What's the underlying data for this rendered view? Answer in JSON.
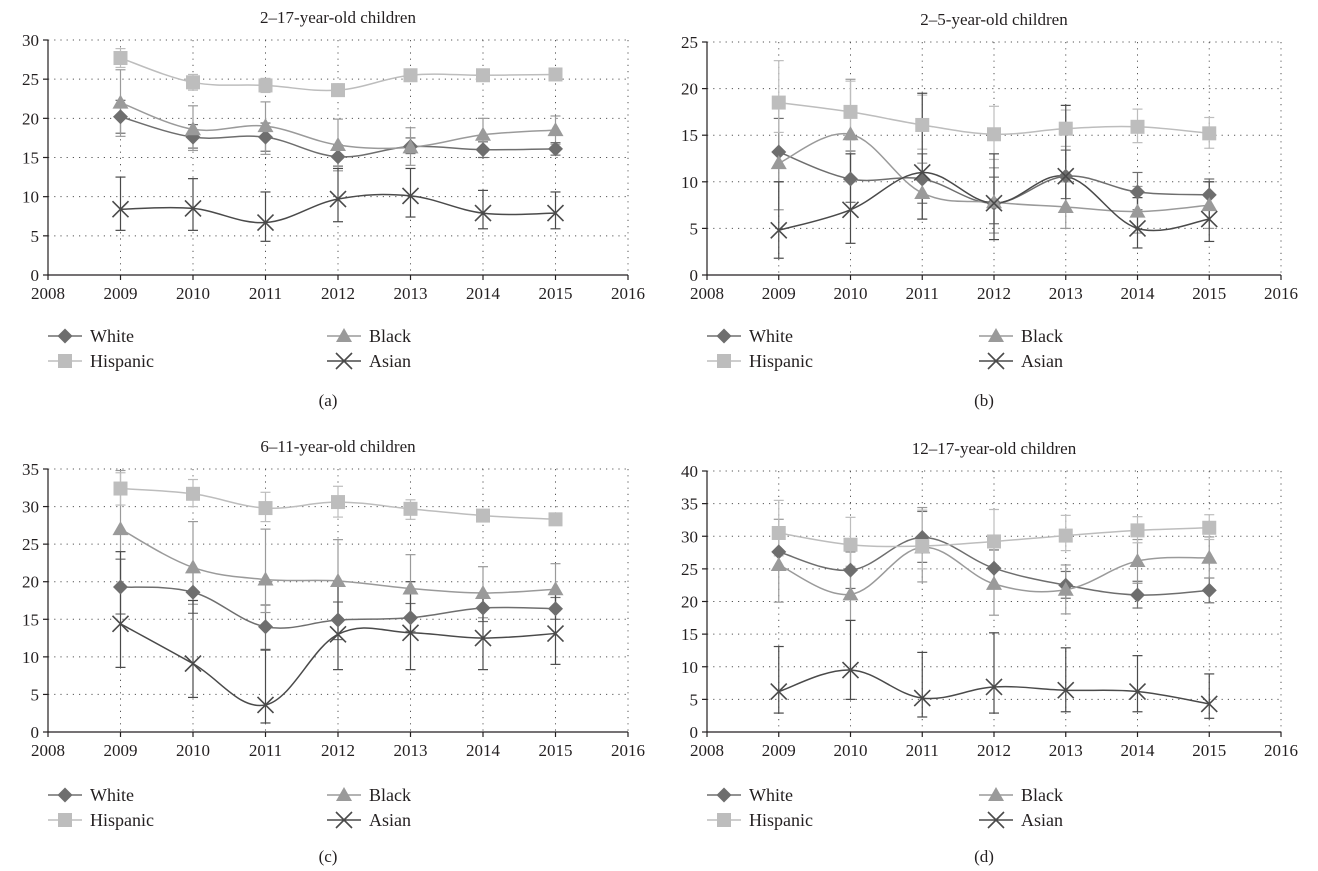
{
  "colors": {
    "White": "#6e6e6e",
    "Black": "#9a9a9a",
    "Hispanic": "#bdbdbd",
    "Asian": "#4a4a4a",
    "axis": "#231f20",
    "grid": "#555555"
  },
  "chart_data": [
    {
      "type": "line",
      "panel_label": "(a)",
      "title": "2–17-year-old children",
      "xlim": [
        2008,
        2016
      ],
      "xticks": [
        2008,
        2009,
        2010,
        2011,
        2012,
        2013,
        2014,
        2015,
        2016
      ],
      "ylim": [
        0,
        30
      ],
      "yticks": [
        0,
        5,
        10,
        15,
        20,
        25,
        30
      ],
      "grid": true,
      "x": [
        2009,
        2010,
        2011,
        2012,
        2013,
        2014,
        2015
      ],
      "series": [
        {
          "name": "White",
          "marker": "diamond",
          "values": [
            20.2,
            17.6,
            17.6,
            15.1,
            16.4,
            16.0,
            16.1
          ],
          "err_low": [
            18.1,
            16.2,
            15.8,
            13.9,
            15.5,
            15.0,
            15.3
          ],
          "err_high": [
            22.3,
            19.2,
            19.4,
            16.6,
            17.5,
            17.0,
            16.9
          ]
        },
        {
          "name": "Black",
          "marker": "triangle",
          "values": [
            22.0,
            18.6,
            19.0,
            16.6,
            16.3,
            17.9,
            18.5
          ],
          "err_low": [
            17.7,
            15.9,
            15.4,
            13.3,
            14.0,
            15.7,
            16.7
          ],
          "err_high": [
            26.2,
            21.6,
            22.1,
            19.9,
            18.8,
            20.0,
            20.3
          ]
        },
        {
          "name": "Hispanic",
          "marker": "square",
          "values": [
            27.7,
            24.6,
            24.2,
            23.6,
            25.5,
            25.5,
            25.6
          ],
          "err_low": [
            26.5,
            23.6,
            23.3,
            22.8,
            24.8,
            24.8,
            25.0
          ],
          "err_high": [
            28.9,
            25.6,
            25.1,
            24.4,
            26.2,
            26.2,
            26.2
          ]
        },
        {
          "name": "Asian",
          "marker": "x",
          "values": [
            8.4,
            8.5,
            6.7,
            9.7,
            10.1,
            7.9,
            7.9
          ],
          "err_low": [
            5.7,
            5.7,
            4.3,
            6.8,
            7.4,
            5.9,
            5.9
          ],
          "err_high": [
            12.5,
            12.3,
            10.6,
            13.6,
            13.6,
            10.8,
            10.6
          ]
        }
      ]
    },
    {
      "type": "line",
      "panel_label": "(b)",
      "title": "2–5-year-old children",
      "xlim": [
        2008,
        2016
      ],
      "xticks": [
        2008,
        2009,
        2010,
        2011,
        2012,
        2013,
        2014,
        2015,
        2016
      ],
      "ylim": [
        0,
        25
      ],
      "yticks": [
        0,
        5,
        10,
        15,
        20,
        25
      ],
      "grid": true,
      "x": [
        2009,
        2010,
        2011,
        2012,
        2013,
        2014,
        2015
      ],
      "series": [
        {
          "name": "White",
          "marker": "diamond",
          "values": [
            13.2,
            10.3,
            10.3,
            7.7,
            10.6,
            8.9,
            8.6
          ],
          "err_low": [
            10.0,
            7.8,
            7.7,
            5.5,
            8.2,
            7.0,
            7.0
          ],
          "err_high": [
            16.8,
            13.3,
            13.0,
            10.5,
            13.4,
            11.0,
            10.3
          ]
        },
        {
          "name": "Black",
          "marker": "triangle",
          "values": [
            12.0,
            15.1,
            8.8,
            7.8,
            7.3,
            6.8,
            7.5
          ],
          "err_low": [
            7.0,
            10.0,
            6.0,
            4.5,
            5.0,
            4.5,
            5.0
          ],
          "err_high": [
            18.0,
            21.0,
            12.0,
            11.5,
            10.0,
            9.5,
            10.0
          ]
        },
        {
          "name": "Hispanic",
          "marker": "square",
          "values": [
            18.5,
            17.5,
            16.1,
            15.1,
            15.7,
            15.9,
            15.2
          ],
          "err_low": [
            15.3,
            14.5,
            13.5,
            12.4,
            13.8,
            14.2,
            13.6
          ],
          "err_high": [
            23.0,
            20.8,
            19.3,
            18.1,
            17.7,
            17.8,
            16.9
          ]
        },
        {
          "name": "Asian",
          "marker": "x",
          "values": [
            4.8,
            7.0,
            11.0,
            7.7,
            10.6,
            5.0,
            6.0
          ],
          "err_low": [
            1.8,
            3.4,
            6.0,
            3.8,
            7.0,
            2.9,
            3.6
          ],
          "err_high": [
            10.0,
            13.0,
            19.5,
            13.0,
            18.2,
            8.3,
            10.0
          ]
        }
      ]
    },
    {
      "type": "line",
      "panel_label": "(c)",
      "title": "6–11-year-old children",
      "xlim": [
        2008,
        2016
      ],
      "xticks": [
        2008,
        2009,
        2010,
        2011,
        2012,
        2013,
        2014,
        2015,
        2016
      ],
      "ylim": [
        0,
        35
      ],
      "yticks": [
        0,
        5,
        10,
        15,
        20,
        25,
        30,
        35
      ],
      "grid": true,
      "x": [
        2009,
        2010,
        2011,
        2012,
        2013,
        2014,
        2015
      ],
      "series": [
        {
          "name": "White",
          "marker": "diamond",
          "values": [
            19.3,
            18.6,
            14.0,
            14.9,
            15.2,
            16.5,
            16.4
          ],
          "err_low": [
            15.7,
            15.8,
            11.0,
            12.3,
            13.4,
            14.7,
            15.0
          ],
          "err_high": [
            23.0,
            21.6,
            16.9,
            17.3,
            17.1,
            18.3,
            17.9
          ]
        },
        {
          "name": "Black",
          "marker": "triangle",
          "values": [
            27.0,
            21.9,
            20.3,
            20.1,
            19.1,
            18.5,
            19.0
          ],
          "err_low": [
            19.3,
            17.0,
            15.9,
            15.1,
            15.3,
            15.2,
            16.1
          ],
          "err_high": [
            34.8,
            28.0,
            27.0,
            25.6,
            23.6,
            22.0,
            22.4
          ]
        },
        {
          "name": "Hispanic",
          "marker": "square",
          "values": [
            32.4,
            31.7,
            29.8,
            30.6,
            29.7,
            28.8,
            28.3
          ],
          "err_low": [
            30.2,
            30.0,
            28.0,
            28.6,
            28.3,
            28.0,
            27.6
          ],
          "err_high": [
            34.5,
            33.6,
            31.9,
            32.7,
            30.9,
            29.6,
            29.0
          ]
        },
        {
          "name": "Asian",
          "marker": "x",
          "values": [
            14.4,
            9.1,
            3.6,
            13.0,
            13.2,
            12.5,
            13.1
          ],
          "err_low": [
            8.6,
            4.6,
            1.2,
            8.3,
            8.3,
            8.3,
            9.0
          ],
          "err_high": [
            24.0,
            17.5,
            10.9,
            20.0,
            20.0,
            18.5,
            18.7
          ]
        }
      ]
    },
    {
      "type": "line",
      "panel_label": "(d)",
      "title": "12–17-year-old children",
      "xlim": [
        2008,
        2016
      ],
      "xticks": [
        2008,
        2009,
        2010,
        2011,
        2012,
        2013,
        2014,
        2015,
        2016
      ],
      "ylim": [
        0,
        40
      ],
      "yticks": [
        0,
        5,
        10,
        15,
        20,
        25,
        30,
        35,
        40
      ],
      "grid": true,
      "x": [
        2009,
        2010,
        2011,
        2012,
        2013,
        2014,
        2015
      ],
      "series": [
        {
          "name": "White",
          "marker": "diamond",
          "values": [
            27.6,
            24.8,
            29.8,
            25.1,
            22.5,
            21.0,
            21.7
          ],
          "err_low": [
            25.0,
            22.0,
            26.0,
            22.4,
            20.5,
            19.0,
            19.8
          ],
          "err_high": [
            30.4,
            27.6,
            33.8,
            27.9,
            24.6,
            23.1,
            23.6
          ]
        },
        {
          "name": "Black",
          "marker": "triangle",
          "values": [
            25.6,
            21.1,
            28.3,
            22.7,
            21.8,
            26.2,
            26.7
          ],
          "err_low": [
            19.9,
            17.1,
            23.0,
            17.9,
            18.1,
            22.8,
            23.6
          ],
          "err_high": [
            32.6,
            27.9,
            34.4,
            28.5,
            25.6,
            29.5,
            29.9
          ]
        },
        {
          "name": "Hispanic",
          "marker": "square",
          "values": [
            30.5,
            28.7,
            28.5,
            29.2,
            30.1,
            30.9,
            31.3
          ],
          "err_low": [
            27.0,
            25.4,
            25.0,
            25.5,
            27.8,
            29.0,
            29.5
          ],
          "err_high": [
            35.5,
            32.9,
            34.0,
            34.1,
            33.2,
            33.0,
            33.3
          ]
        },
        {
          "name": "Asian",
          "marker": "x",
          "values": [
            6.2,
            9.5,
            5.2,
            6.9,
            6.4,
            6.2,
            4.3
          ],
          "err_low": [
            2.9,
            5.0,
            2.3,
            2.9,
            3.1,
            3.1,
            2.1
          ],
          "err_high": [
            13.1,
            17.1,
            12.2,
            15.2,
            12.9,
            11.7,
            8.9
          ]
        }
      ]
    }
  ]
}
